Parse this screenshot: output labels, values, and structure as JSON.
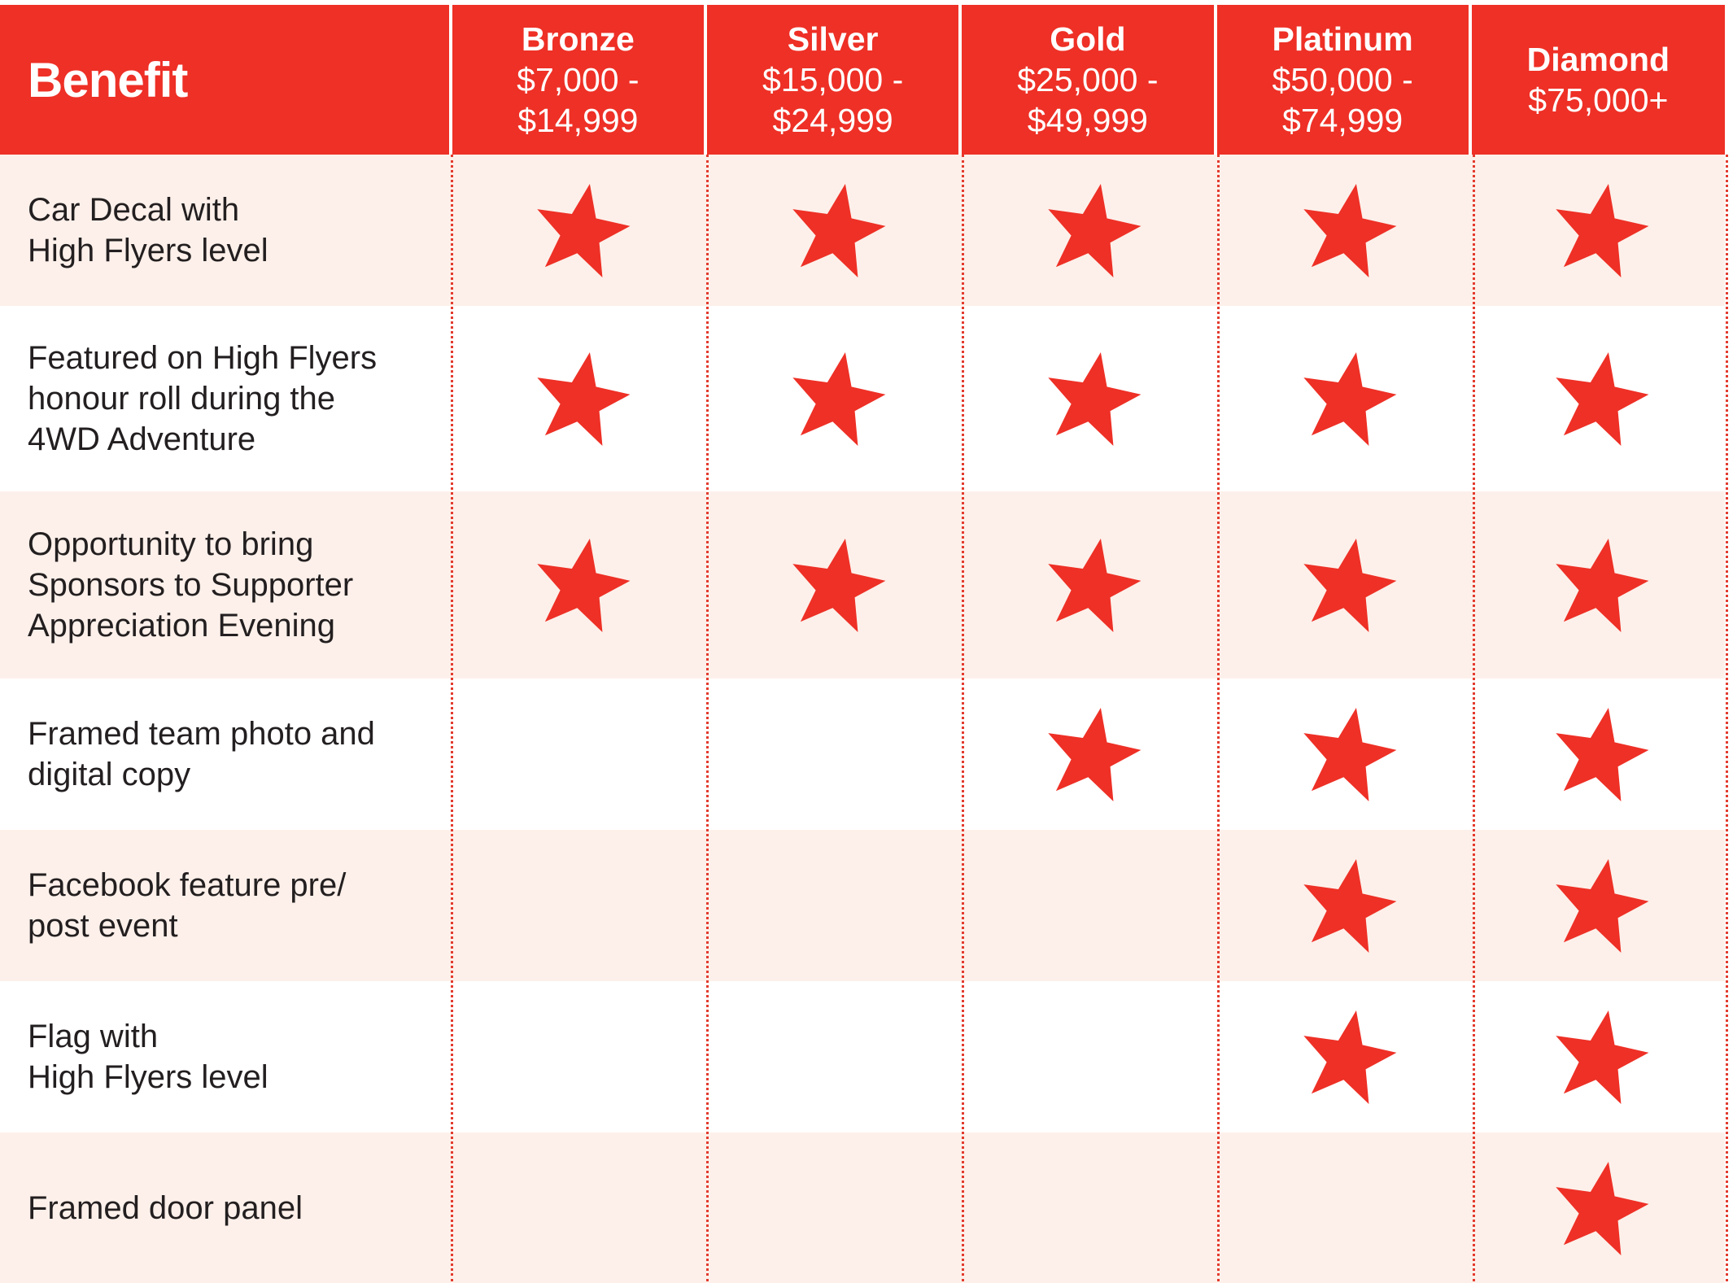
{
  "header": {
    "benefit_label": "Benefit",
    "tiers": [
      {
        "name": "Bronze",
        "range": "$7,000 - $14,999"
      },
      {
        "name": "Silver",
        "range": "$15,000 - $24,999"
      },
      {
        "name": "Gold",
        "range": "$25,000 - $49,999"
      },
      {
        "name": "Platinum",
        "range": "$50,000 - $74,999"
      },
      {
        "name": "Diamond",
        "range": "$75,000+"
      }
    ]
  },
  "rows": [
    {
      "benefit_lines": [
        "Car Decal with",
        "High Flyers level"
      ],
      "included": [
        true,
        true,
        true,
        true,
        true
      ]
    },
    {
      "benefit_lines": [
        "Featured on High Flyers",
        "honour roll during the",
        "4WD Adventure"
      ],
      "included": [
        true,
        true,
        true,
        true,
        true
      ]
    },
    {
      "benefit_lines": [
        "Opportunity to bring",
        "Sponsors to Supporter",
        "Appreciation Evening"
      ],
      "included": [
        true,
        true,
        true,
        true,
        true
      ]
    },
    {
      "benefit_lines": [
        "Framed team photo and",
        "digital copy"
      ],
      "included": [
        false,
        false,
        true,
        true,
        true
      ]
    },
    {
      "benefit_lines": [
        "Facebook feature pre/",
        "post event"
      ],
      "included": [
        false,
        false,
        false,
        true,
        true
      ]
    },
    {
      "benefit_lines": [
        "Flag with",
        "High Flyers level"
      ],
      "included": [
        false,
        false,
        false,
        true,
        true
      ]
    },
    {
      "benefit_lines": [
        "Framed door panel"
      ],
      "included": [
        false,
        false,
        false,
        false,
        true
      ]
    }
  ],
  "colors": {
    "accent": "#ee3026",
    "row_tint": "#fdf0ea",
    "star": "#ee3026"
  },
  "icon": "star-icon"
}
